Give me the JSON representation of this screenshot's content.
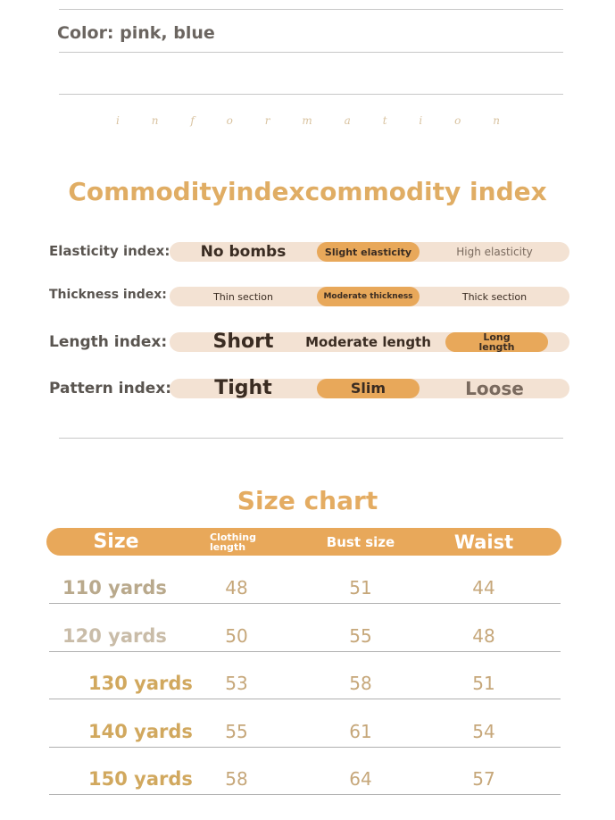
{
  "color_line": "Color: pink, blue",
  "script_letters": [
    "i",
    "n",
    "f",
    "o",
    "r",
    "m",
    "a",
    "t",
    "i",
    "o",
    "n"
  ],
  "index_title": "Commodityindexcommodity index",
  "indices": [
    {
      "label": "Elasticity index:",
      "options": [
        "No bombs",
        "Slight elasticity",
        "High elasticity"
      ],
      "selected": 1
    },
    {
      "label": "Thickness index:",
      "options": [
        "Thin section",
        "Moderate thickness",
        "Thick section"
      ],
      "selected": 1
    },
    {
      "label": "Length index:",
      "options": [
        "Short",
        "Moderate length",
        "Long length"
      ],
      "selected": 2
    },
    {
      "label": "Pattern index:",
      "options": [
        "Tight",
        "Slim",
        "Loose"
      ],
      "selected": 1
    }
  ],
  "size_chart": {
    "title": "Size chart",
    "headers": [
      "Size",
      "Clothing length",
      "Bust size",
      "Waist"
    ],
    "rows": [
      [
        "110 yards",
        "48",
        "51",
        "44"
      ],
      [
        "120 yards",
        "50",
        "55",
        "48"
      ],
      [
        "130 yards",
        "53",
        "58",
        "51"
      ],
      [
        "140 yards",
        "55",
        "61",
        "54"
      ],
      [
        "150 yards",
        "58",
        "64",
        "57"
      ]
    ]
  },
  "colors": {
    "accent": "#e8a85a",
    "bar_bg": "#f3e2d3",
    "title": "#e0ad64"
  }
}
